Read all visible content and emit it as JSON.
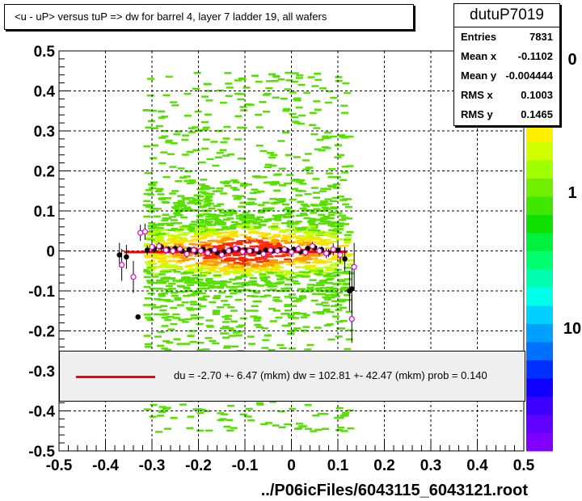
{
  "title": "<u - uP>       versus  tuP =>  dw for barrel 4, layer 7 ladder 19, all wafers",
  "stats": {
    "name": "dutuP7019",
    "rows": [
      {
        "label": "Entries",
        "value": "7831"
      },
      {
        "label": "Mean x",
        "value": "-0.1102"
      },
      {
        "label": "Mean y",
        "value": "-0.004444"
      },
      {
        "label": "RMS x",
        "value": "0.1003"
      },
      {
        "label": "RMS y",
        "value": "0.1465"
      }
    ]
  },
  "fit": {
    "text": "du =   -2.70 +-  6.47 (mkm) dw =  102.81 +- 42.47 (mkm) prob = 0.140",
    "line_color": "#ff0000"
  },
  "palette_labels": [
    "0",
    "1",
    "10"
  ],
  "chart_data": {
    "type": "heatmap",
    "xlabel": "../P06icFiles/6043115_6043121.root",
    "ylabel": "",
    "xlim": [
      -0.5,
      0.5
    ],
    "ylim": [
      -0.5,
      0.5
    ],
    "x_ticks": [
      "-0.5",
      "-0.4",
      "-0.3",
      "-0.2",
      "-0.1",
      "0",
      "0.1",
      "0.2",
      "0.3",
      "0.4",
      "0.5"
    ],
    "y_ticks": [
      "-0.5",
      "-0.4",
      "-0.3",
      "-0.2",
      "-0.1",
      "0",
      "0.1",
      "0.2",
      "0.3",
      "0.4",
      "0.5"
    ],
    "grid": true,
    "occupied_x_range": [
      -0.32,
      0.12
    ],
    "fit_line": {
      "x": [
        -0.36,
        0.12
      ],
      "y": [
        -0.003,
        -0.002
      ],
      "color": "#ff0000"
    },
    "series": [
      {
        "name": "mean",
        "marker": "filled-circle",
        "color": "#000000",
        "x": [
          -0.37,
          -0.355,
          -0.33,
          -0.31,
          -0.295,
          -0.28,
          -0.265,
          -0.25,
          -0.235,
          -0.22,
          -0.205,
          -0.19,
          -0.175,
          -0.16,
          -0.145,
          -0.13,
          -0.115,
          -0.1,
          -0.085,
          -0.07,
          -0.055,
          -0.04,
          -0.025,
          -0.01,
          0.005,
          0.02,
          0.035,
          0.05,
          0.065,
          0.08,
          0.1,
          0.115,
          0.125,
          0.13
        ],
        "y": [
          -0.01,
          -0.015,
          -0.165,
          0.002,
          0.005,
          0.01,
          0.004,
          0.006,
          0.0,
          0.003,
          -0.002,
          0.004,
          0.0,
          -0.004,
          -0.002,
          0.002,
          0.005,
          0.002,
          0.0,
          -0.003,
          0.002,
          0.0,
          0.003,
          0.002,
          0.004,
          -0.002,
          0.006,
          0.008,
          0.003,
          -0.005,
          0.002,
          -0.02,
          -0.1,
          -0.095
        ],
        "err": [
          0.03,
          0.03,
          0.0,
          0.012,
          0.01,
          0.008,
          0.008,
          0.008,
          0.007,
          0.007,
          0.007,
          0.007,
          0.007,
          0.007,
          0.006,
          0.006,
          0.006,
          0.006,
          0.006,
          0.006,
          0.006,
          0.006,
          0.006,
          0.006,
          0.007,
          0.007,
          0.008,
          0.008,
          0.009,
          0.01,
          0.02,
          0.03,
          0.05,
          0.06
        ]
      },
      {
        "name": "median",
        "marker": "open-circle",
        "color": "#e000e0",
        "x": [
          -0.365,
          -0.34,
          -0.325,
          -0.315,
          -0.3,
          -0.285,
          -0.27,
          -0.255,
          -0.24,
          -0.225,
          -0.21,
          -0.195,
          -0.18,
          -0.165,
          -0.15,
          -0.135,
          -0.12,
          -0.105,
          -0.09,
          -0.075,
          -0.06,
          -0.045,
          -0.03,
          -0.015,
          0.0,
          0.015,
          0.03,
          0.045,
          0.06,
          0.075,
          0.09,
          0.105,
          0.13,
          0.135
        ],
        "y": [
          -0.035,
          -0.065,
          0.045,
          0.048,
          0.01,
          0.012,
          0.002,
          0.0,
          0.005,
          -0.008,
          0.002,
          0.0,
          -0.005,
          0.003,
          -0.01,
          0.0,
          0.006,
          -0.002,
          0.0,
          0.004,
          -0.008,
          0.002,
          0.0,
          0.004,
          -0.003,
          0.005,
          -0.004,
          0.012,
          0.0,
          -0.006,
          0.004,
          -0.01,
          -0.17,
          -0.04
        ],
        "err": [
          0.04,
          0.04,
          0.02,
          0.02,
          0.012,
          0.01,
          0.01,
          0.009,
          0.009,
          0.009,
          0.008,
          0.008,
          0.008,
          0.008,
          0.008,
          0.008,
          0.008,
          0.008,
          0.008,
          0.008,
          0.008,
          0.008,
          0.008,
          0.008,
          0.008,
          0.009,
          0.009,
          0.01,
          0.01,
          0.012,
          0.015,
          0.02,
          0.06,
          0.06
        ]
      }
    ]
  }
}
